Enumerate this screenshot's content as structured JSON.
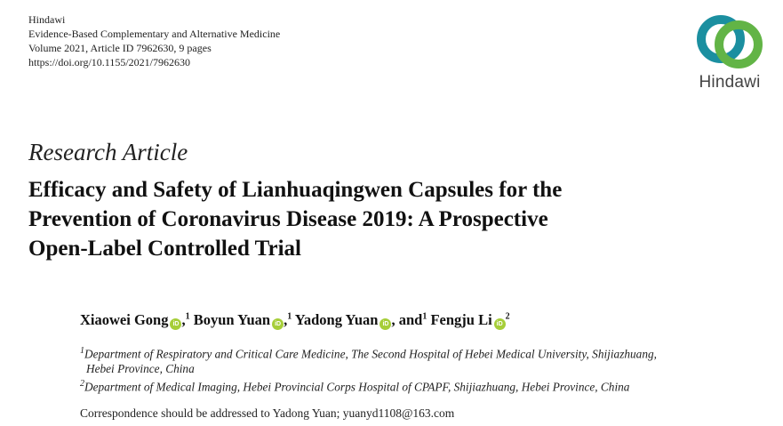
{
  "journal": {
    "publisher": "Hindawi",
    "name": "Evidence-Based Complementary and Alternative Medicine",
    "volume_line": "Volume 2021, Article ID 7962630, 9 pages",
    "doi": "https://doi.org/10.1155/2021/7962630"
  },
  "logo": {
    "text": "Hindawi",
    "colors": {
      "teal": "#1b8fa0",
      "green": "#62b446",
      "text": "#444444"
    }
  },
  "article_type": "Research Article",
  "title_lines": [
    "Efficacy and Safety of Lianhuaqingwen Capsules for the",
    "Prevention of Coronavirus Disease 2019: A Prospective",
    "Open-Label Controlled Trial"
  ],
  "authors": [
    {
      "name": "Xiaowei Gong",
      "sup": "1",
      "sep": ","
    },
    {
      "name": "Boyun Yuan",
      "sup": "1",
      "sep": ","
    },
    {
      "name": "Yadong Yuan",
      "sup": "1",
      "sep": ", and"
    },
    {
      "name": "Fengju Li",
      "sup": "2",
      "sep": ""
    }
  ],
  "orcid_icon_label": "iD",
  "affiliations": [
    {
      "sup": "1",
      "lines": [
        "Department of Respiratory and Critical Care Medicine, The Second Hospital of Hebei Medical University, Shijiazhuang,",
        "Hebei Province, China"
      ]
    },
    {
      "sup": "2",
      "lines": [
        "Department of Medical Imaging, Hebei Provincial Corps Hospital of CPAPF, Shijiazhuang, Hebei Province, China"
      ]
    }
  ],
  "correspondence": "Correspondence should be addressed to Yadong Yuan; yuanyd1108@163.com"
}
